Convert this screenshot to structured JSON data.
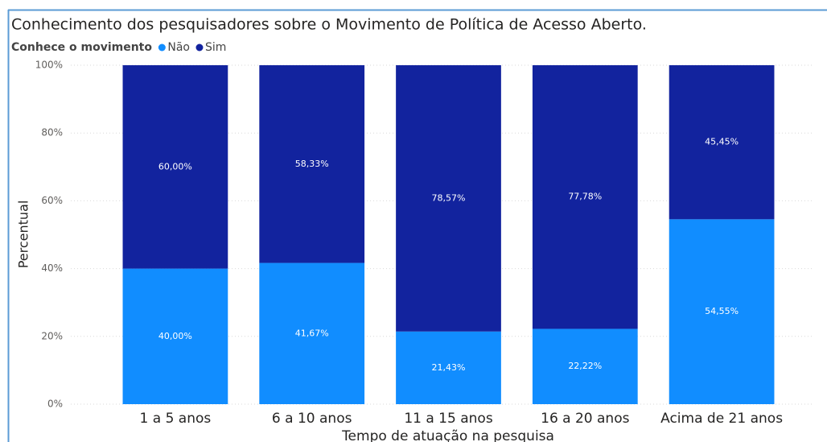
{
  "chart_data": {
    "type": "stacked_bar_100",
    "title": "Conhecimento dos pesquisadores sobre o Movimento de Política de Acesso Aberto.",
    "legend_title": "Conhece o movimento",
    "x_label": "Tempo de atuação na pesquisa",
    "y_label": "Percentual",
    "categories": [
      "1 a 5 anos",
      "6 a 10 anos",
      "11 a 15 anos",
      "16 a 20 anos",
      "Acima de 21 anos"
    ],
    "series": [
      {
        "name": "Não",
        "color": "#118dff",
        "values": [
          40,
          41.67,
          21.43,
          22.22,
          54.55
        ],
        "value_labels": [
          "40,00%",
          "41,67%",
          "21,43%",
          "22,22%",
          "54,55%"
        ]
      },
      {
        "name": "Sim",
        "color": "#12239e",
        "values": [
          60,
          58.33,
          78.57,
          77.78,
          45.45
        ],
        "value_labels": [
          "60,00%",
          "58,33%",
          "78,57%",
          "77,78%",
          "45,45%"
        ]
      }
    ],
    "ylim": [
      0,
      100
    ],
    "yticks": [
      {
        "value": 0,
        "label": "0%"
      },
      {
        "value": 20,
        "label": "20%"
      },
      {
        "value": 40,
        "label": "40%"
      },
      {
        "value": 60,
        "label": "60%"
      },
      {
        "value": 80,
        "label": "80%"
      },
      {
        "value": 100,
        "label": "100%"
      }
    ],
    "grid": true
  }
}
